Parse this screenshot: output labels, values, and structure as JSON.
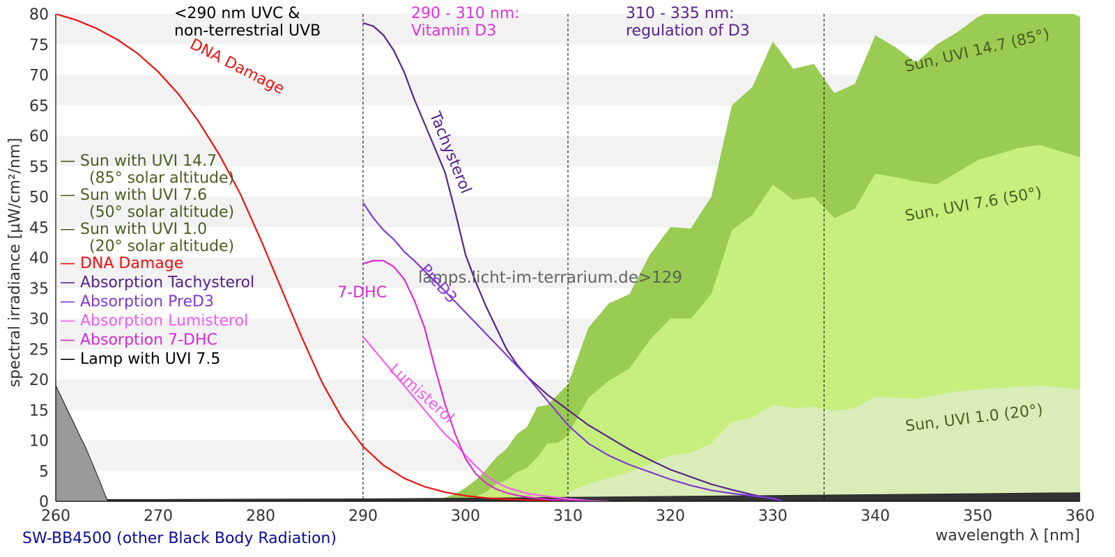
{
  "chart_data": {
    "type": "area",
    "title": "",
    "xlabel": "wavelength λ [nm]",
    "ylabel": "spectral irradiance [µW/cm²/nm]",
    "xlim": [
      260,
      360
    ],
    "ylim": [
      0,
      80
    ],
    "x_ticks": [
      260,
      270,
      280,
      290,
      300,
      310,
      320,
      330,
      340,
      350,
      360
    ],
    "y_ticks": [
      0,
      5,
      10,
      15,
      20,
      25,
      30,
      35,
      40,
      45,
      50,
      55,
      60,
      65,
      70,
      75,
      80
    ],
    "grid": "horizontal bands",
    "footer_label": "SW-BB4500 (other Black Body Radiation)",
    "watermark": "lamps.licht-im-terrarium.de>129",
    "colors": {
      "sun147": "#9acb52",
      "sun76": "#c6ef7e",
      "sun10": "#daedb8",
      "dna": "#ee1111",
      "tachy": "#55228a",
      "pred3": "#7f3ad2",
      "lumi": "#f35ef0",
      "dhc": "#d82ad2",
      "lamp": "#222222",
      "legend_sun": "#4a5e22"
    },
    "regions": [
      {
        "key": "r1",
        "boundary": 290,
        "line1": "<290 nm UVC &",
        "line2": "non-terrestrial UVB",
        "color": "#000000"
      },
      {
        "key": "r2",
        "boundary": 310,
        "line1": "290 - 310 nm:",
        "line2": "Vitamin D3",
        "color": "#dd33dd"
      },
      {
        "key": "r3",
        "boundary": 335,
        "line1": "310 - 335 nm:",
        "line2": "regulation of D3",
        "color": "#5a2090"
      }
    ],
    "legend": [
      {
        "key": "sun147",
        "label": "— Sun with UVI 14.7",
        "sub": "(85° solar altitude)",
        "color": "#4a5e22"
      },
      {
        "key": "sun76",
        "label": "— Sun with UVI 7.6",
        "sub": "(50° solar altitude)",
        "color": "#4a5e22"
      },
      {
        "key": "sun10",
        "label": "— Sun with UVI 1.0",
        "sub": "(20° solar altitude)",
        "color": "#4a5e22"
      },
      {
        "key": "dna",
        "label": "— DNA Damage",
        "color": "#ee1111"
      },
      {
        "key": "tachy",
        "label": "— Absorption Tachysterol",
        "color": "#55228a"
      },
      {
        "key": "pred3",
        "label": "— Absorption PreD3",
        "color": "#7f3ad2"
      },
      {
        "key": "lumi",
        "label": "— Absorption Lumisterol",
        "color": "#f35ef0"
      },
      {
        "key": "dhc",
        "label": "— Absorption 7-DHC",
        "color": "#d82ad2"
      },
      {
        "key": "lamp",
        "label": "— Lamp with UVI 7.5",
        "color": "#000000"
      }
    ],
    "series": [
      {
        "key": "sun147",
        "name": "Sun, UVI 14.7 (85°)",
        "kind": "area",
        "x": [
          295,
          296,
          297,
          298,
          299,
          300,
          301,
          302,
          303,
          304,
          305,
          306,
          307,
          308,
          309,
          310,
          311,
          312,
          314,
          316,
          318,
          320,
          322,
          324,
          326,
          328,
          330,
          332,
          334,
          336,
          338,
          340,
          342,
          344,
          346,
          348,
          350,
          352,
          354,
          356,
          358,
          360
        ],
        "y": [
          0.0,
          0.1,
          0.3,
          0.6,
          1.2,
          2.2,
          3.5,
          5.2,
          7.2,
          8.6,
          11.0,
          12.2,
          15.5,
          15.8,
          17.5,
          19.2,
          23.8,
          28.5,
          32.5,
          34.0,
          40.5,
          45.0,
          44.8,
          50.0,
          65.0,
          68.0,
          75.5,
          71.0,
          71.8,
          67.0,
          68.5,
          76.5,
          74.5,
          72.0,
          75.0,
          77.0,
          79.5,
          81.0,
          82.5,
          83.5,
          81.0,
          79.5
        ]
      },
      {
        "key": "sun76",
        "name": "Sun, UVI 7.6 (50°)",
        "kind": "area",
        "x": [
          300,
          301,
          302,
          303,
          304,
          305,
          306,
          307,
          308,
          309,
          310,
          311,
          312,
          314,
          316,
          318,
          320,
          322,
          324,
          326,
          328,
          330,
          332,
          334,
          336,
          338,
          340,
          342,
          344,
          346,
          348,
          350,
          352,
          354,
          356,
          358,
          360
        ],
        "y": [
          0.0,
          0.8,
          1.5,
          2.8,
          3.5,
          4.8,
          5.5,
          7.2,
          9.5,
          9.6,
          10.8,
          14.0,
          17.0,
          19.8,
          21.8,
          26.5,
          30.0,
          30.0,
          34.0,
          44.5,
          47.0,
          52.0,
          49.5,
          50.0,
          46.5,
          48.0,
          53.8,
          53.2,
          52.5,
          52.0,
          54.0,
          56.0,
          57.0,
          58.0,
          58.5,
          57.5,
          56.5
        ]
      },
      {
        "key": "sun10",
        "name": "Sun, UVI 1.0 (20°)",
        "kind": "area",
        "x": [
          310,
          311,
          312,
          314,
          316,
          318,
          320,
          322,
          324,
          326,
          328,
          330,
          332,
          334,
          336,
          338,
          340,
          342,
          344,
          346,
          348,
          350,
          352,
          354,
          356,
          358,
          360
        ],
        "y": [
          1.5,
          2.2,
          2.8,
          3.8,
          4.8,
          6.2,
          7.5,
          8.0,
          9.5,
          13.0,
          13.8,
          15.8,
          15.3,
          15.5,
          14.8,
          15.3,
          17.2,
          17.0,
          16.8,
          17.5,
          18.0,
          18.4,
          18.6,
          18.8,
          19.0,
          18.7,
          18.4
        ]
      },
      {
        "key": "lamp",
        "name": "Lamp with UVI 7.5",
        "kind": "area",
        "x": [
          260,
          261,
          262,
          263,
          264,
          265,
          270,
          280,
          290,
          300,
          310,
          320,
          330,
          340,
          350,
          355,
          360
        ],
        "y": [
          19.0,
          15.5,
          12.0,
          8.5,
          4.5,
          0.3,
          0.3,
          0.35,
          0.4,
          0.5,
          0.65,
          0.8,
          0.95,
          1.1,
          1.25,
          1.35,
          1.4
        ]
      },
      {
        "key": "dna",
        "name": "DNA Damage",
        "kind": "line",
        "x": [
          260,
          262,
          264,
          266,
          268,
          270,
          272,
          274,
          276,
          278,
          280,
          282,
          284,
          286,
          288,
          290,
          292,
          294,
          296,
          298,
          300,
          302,
          304,
          306,
          308,
          310,
          312
        ],
        "y": [
          80.0,
          79.0,
          77.6,
          75.8,
          73.5,
          70.5,
          66.8,
          62.2,
          56.8,
          50.5,
          43.0,
          35.0,
          27.0,
          19.5,
          13.5,
          9.0,
          5.9,
          3.8,
          2.4,
          1.5,
          0.9,
          0.55,
          0.35,
          0.2,
          0.12,
          0.07,
          0.04
        ],
        "note": "read from plotted curve"
      },
      {
        "key": "tachy",
        "name": "Absorption Tachysterol",
        "kind": "line",
        "x": [
          290,
          291,
          292,
          293,
          294,
          295,
          296,
          297,
          298,
          299,
          300,
          301,
          302,
          303,
          304,
          305,
          306,
          308,
          310,
          312,
          314,
          316,
          318,
          320,
          322,
          324,
          326,
          328,
          330,
          331
        ],
        "y": [
          78.5,
          78.0,
          76.5,
          74.0,
          70.5,
          66.0,
          62.0,
          58.0,
          54.0,
          47.5,
          40.5,
          36.0,
          32.0,
          28.5,
          25.0,
          22.5,
          20.5,
          17.5,
          15.0,
          12.5,
          10.5,
          8.5,
          6.8,
          5.2,
          4.0,
          2.8,
          1.9,
          1.1,
          0.4,
          0.0
        ]
      },
      {
        "key": "pred3",
        "name": "Absorption PreD3",
        "kind": "line",
        "x": [
          290,
          291,
          292,
          293,
          294,
          295,
          296,
          298,
          300,
          302,
          304,
          306,
          308,
          310,
          312,
          314,
          316,
          318,
          320,
          322,
          324,
          326,
          328,
          330,
          331
        ],
        "y": [
          49.0,
          46.5,
          44.5,
          43.0,
          41.0,
          39.5,
          37.8,
          34.5,
          31.0,
          27.5,
          24.0,
          20.5,
          16.5,
          12.5,
          9.5,
          7.5,
          6.0,
          4.8,
          3.6,
          2.6,
          1.8,
          1.3,
          0.9,
          0.5,
          0.0
        ]
      },
      {
        "key": "lumi",
        "name": "Absorption Lumisterol",
        "kind": "line",
        "x": [
          290,
          291,
          292,
          293,
          294,
          295,
          296,
          297,
          298,
          299,
          300,
          301,
          302,
          303,
          304,
          305,
          306,
          308,
          310,
          312,
          314
        ],
        "y": [
          27.0,
          25.0,
          23.0,
          21.0,
          19.0,
          17.0,
          15.0,
          13.0,
          11.0,
          9.5,
          7.5,
          5.8,
          4.2,
          3.1,
          2.3,
          1.8,
          1.3,
          0.8,
          0.4,
          0.1,
          0.0
        ]
      },
      {
        "key": "dhc",
        "name": "Absorption 7-DHC",
        "kind": "line",
        "x": [
          290,
          291,
          292,
          293,
          294,
          295,
          296,
          297,
          298,
          299,
          300,
          301,
          302,
          303,
          304,
          305,
          306,
          308,
          310,
          312
        ],
        "y": [
          39.0,
          39.5,
          39.5,
          38.5,
          36.5,
          33.0,
          28.5,
          22.0,
          16.0,
          11.0,
          7.0,
          4.5,
          3.0,
          2.0,
          1.4,
          1.0,
          0.7,
          0.3,
          0.1,
          0.0
        ]
      }
    ],
    "curve_labels": [
      {
        "key": "sun147",
        "text": "Sun, UVI 14.7 (85°)",
        "x": 343,
        "y": 70.5,
        "rotate": -13,
        "color": "#4a5e22"
      },
      {
        "key": "sun76",
        "text": "Sun, UVI 7.6 (50°)",
        "x": 343,
        "y": 46.0,
        "rotate": -10,
        "color": "#4a5e22"
      },
      {
        "key": "sun10",
        "text": "Sun, UVI 1.0 (20°)",
        "x": 343,
        "y": 11.5,
        "rotate": -7,
        "color": "#4a5e22"
      },
      {
        "key": "dna",
        "text": "DNA Damage",
        "x": 273,
        "y": 74.5,
        "rotate": 27,
        "color": "#ee1111"
      },
      {
        "key": "tachy",
        "text": "Tachysterol",
        "x": 296.5,
        "y": 63.5,
        "rotate": 68,
        "color": "#55228a"
      },
      {
        "key": "pred3",
        "text": "PreD3",
        "x": 295.5,
        "y": 38.0,
        "rotate": 48,
        "color": "#7f3ad2"
      },
      {
        "key": "dhc",
        "text": "7-DHC",
        "x": 287.5,
        "y": 33.5,
        "rotate": 0,
        "color": "#d82ad2"
      },
      {
        "key": "lumi",
        "text": "Lumisterol",
        "x": 292.5,
        "y": 21.5,
        "rotate": 42,
        "color": "#f35ef0"
      }
    ]
  }
}
